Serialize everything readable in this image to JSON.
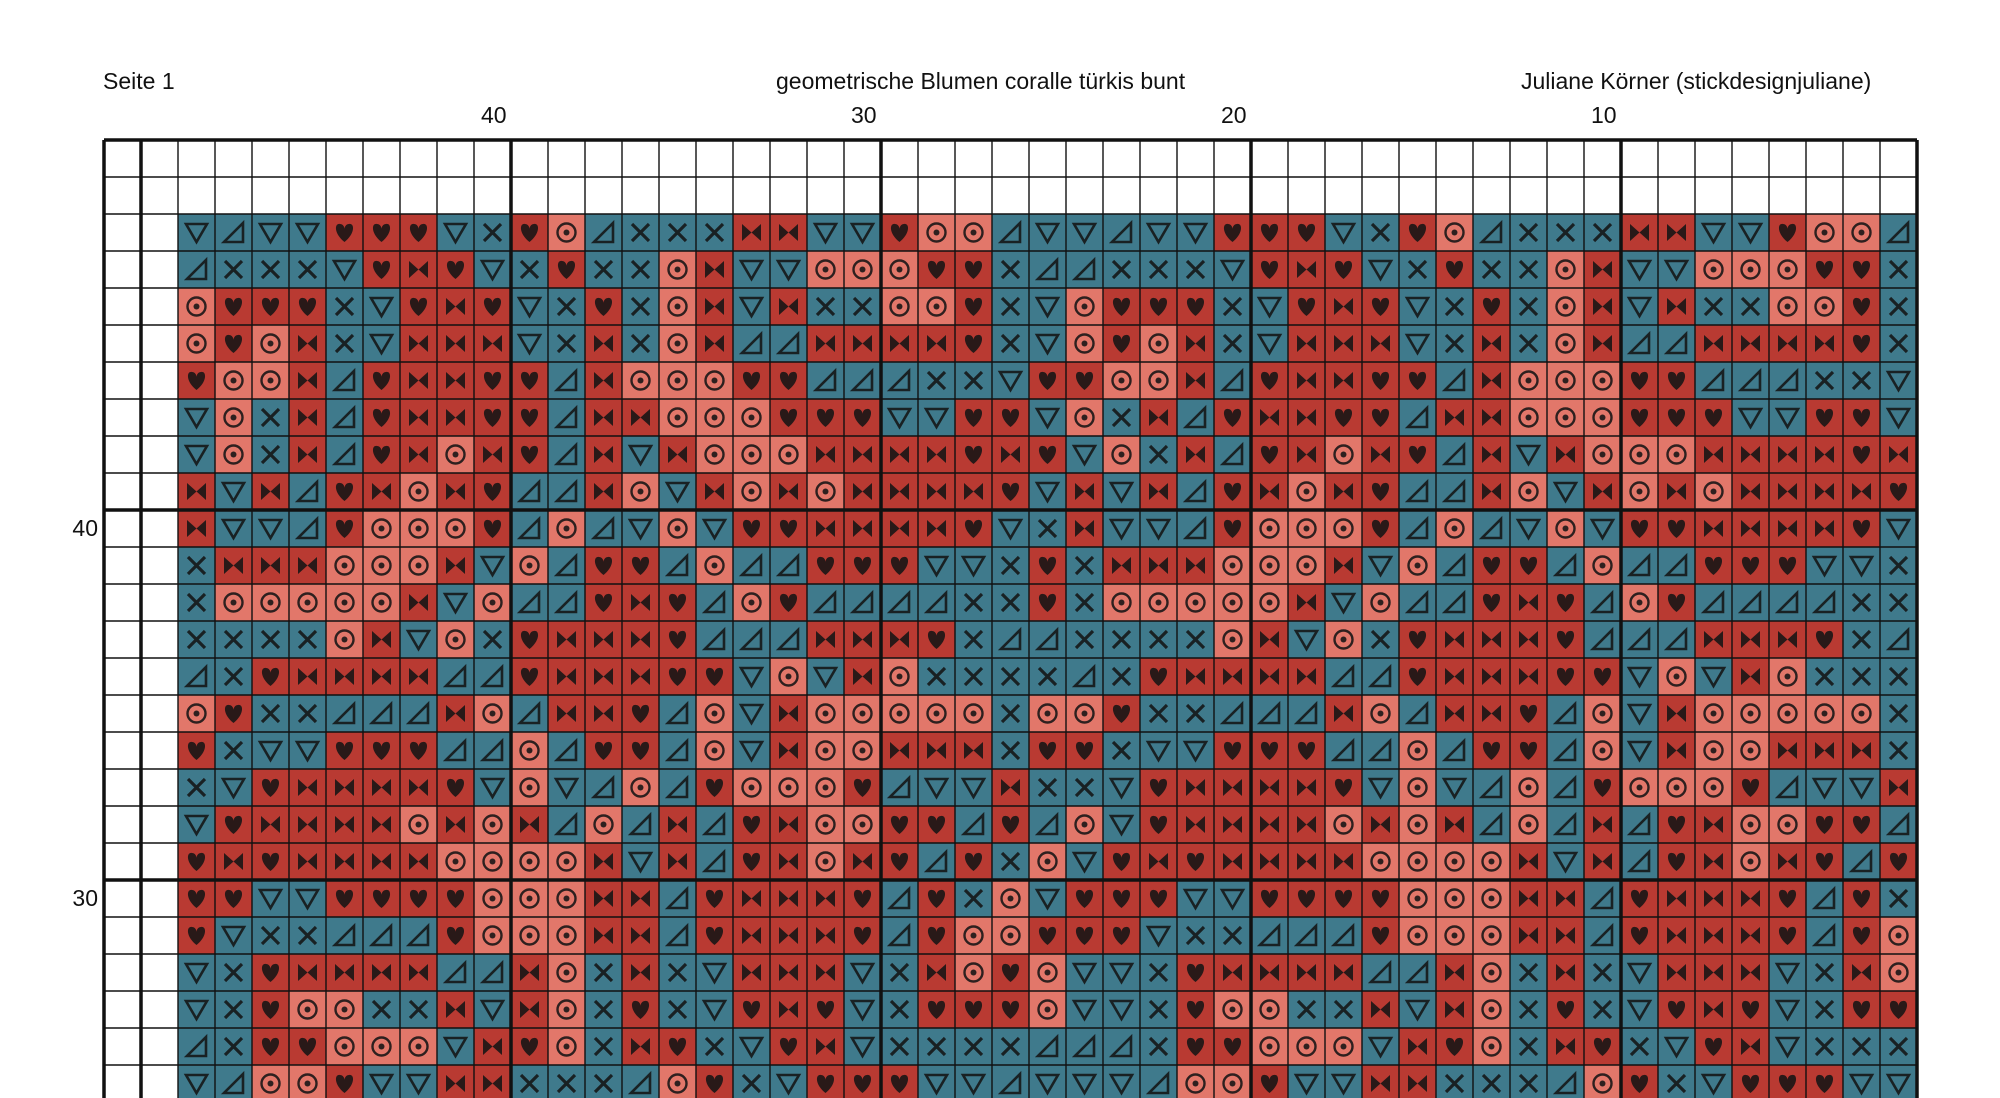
{
  "header": {
    "page_label": "Seite 1",
    "title": "geometrische Blumen coralle türkis bunt",
    "author": "Juliane Körner (stickdesignjuliane)"
  },
  "axes": {
    "column_numbers": [
      "40",
      "30",
      "20",
      "10"
    ],
    "row_numbers": [
      "40",
      "30"
    ]
  },
  "colors": {
    "teal": "#3f7a8c",
    "dark_red": "#b93a32",
    "coral": "#e2776a",
    "grid_line": "#111111",
    "empty": "#ffffff"
  },
  "legend": {
    "T": {
      "color": "teal",
      "icon": "triangle-down-icon"
    },
    "A": {
      "color": "teal",
      "icon": "corner-triangle-icon"
    },
    "X": {
      "color": "teal",
      "icon": "cross-icon"
    },
    "H": {
      "color": "dark_red",
      "icon": "heart-icon"
    },
    "B": {
      "color": "dark_red",
      "icon": "bowtie-icon"
    },
    "O": {
      "color": "coral",
      "icon": "circle-dot-icon"
    },
    "-": {
      "color": "empty",
      "icon": ""
    }
  },
  "pattern_rows": [
    "-----------------------------------------------",
    "-----------------------------------------------",
    "--TATTHHHTXHOAXXXBBTTHOOATTATTHHHTXHOAXXXBBTTHOOAT",
    "--AXXXTHBHTXHXXOBTTOOOHHXAAXXXTHBHTXHXXOBTTOOOHHXA",
    "--OHHHXTHBHTXHXOBTBXXOOHXTOHHHXTHBHTXHXOBTBXXOOHXT",
    "--OHOBXTBBBTXBXOBAABBBBHXTOHOBXTBBBTXBXOBAABBBBHXT",
    "--HOOBAHBBHHABOOOHHAAAXXTHHOOBAHBBHHABOOOHHAAAXXTH",
    "--TOXBAHBBHHABBOOOHHHTTHHTOXBAHBBHHABBOOOHHHTTHHTO",
    "--TOXBAHBOBHABTBOOOBBBBHBHTOXBAHBOBHABTBOOOBBBBHBH",
    "--BTBAHBOBHAABOTBOBOBBBBHTBTBAHBOBHAABOTBOBOBBBBHT",
    "--BTTAHOOOHAOATOTHHBBBBHTXBTTAHOOOHAOATOTHHBBBBHTX",
    "--XBBBOOOBTOAHHAOAAHHHTTXHXBBBOOOBTOAHHAOAAHHHTTXH",
    "--XOOOOOBTOAAHBHAOHAAAAXXHXOOOOOBTOAAHBHAOHAAAAXXH",
    "--XXXXOBTOXHBBBHAAABBBHXAAXXXXOBTOXHBBBHAAABBBHXAA",
    "--AXHBBBBAAHBBBHHTOTBOXXXXAXHBBBBAAHBBBHHTOTBOXXXX",
    "--OHXXAAABOABBHAOTBOOOOOXOOHXXAAABOABBHAOTBOOOOOXO",
    "--HXTTHHHAAOAHHAOTBOOBBBXHHXTTHHHAAOAHHAOTBOOBBBXH",
    "--XTHBBBBHTOTAOAHOOOHATTBXXTHBBBBHTOTAOAHOOOHATTBX",
    "--THBBBBOBOBAOABAHBOOHHAHAOTHBBBBOBOBAOABAHBOOHHAH",
    "--HBHBBBBOOOOBTBAHBOBHAHXOTHBHBBBBOOOOBTBAHBOBHAHX",
    "--HHTTHHHHOOOBBAHBBBHAHXOTHHHTTHHHHOOOBBAHBBBHAHXO",
    "--HTXXAAAHOOOBBAHBBBHAHOOHHHTXXAAAHOOOBBAHBBBHAHOO",
    "--TXHBBBBAABOXBXTBBBTXBOHOTTXHBBBBAABOXBXTBBBTXBOH",
    "--TXHOOXXBTBOXHXTHBHTXHHHOTTXHOOXXBTBOXHXTHBHTXHHH",
    "--AXHHOOOTBHOXBHXTHBTXXXXAAAXHHOOOTBHOXBHXTHBTXXXX",
    "--TAOOHTTBBXXXAOHXTHHHTTATTTAOOHTTBBXXXAOHXTHHHTTA"
  ]
}
